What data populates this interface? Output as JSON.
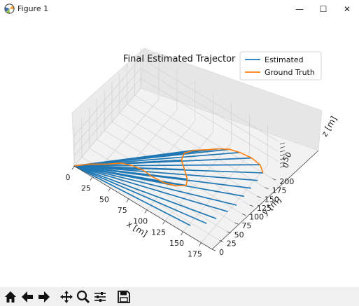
{
  "window": {
    "title": "Figure 1",
    "minimize_glyph": "—",
    "maximize_glyph": "☐",
    "close_glyph": "✕"
  },
  "toolbar": {
    "buttons": [
      {
        "name": "home-icon"
      },
      {
        "name": "back-arrow-icon"
      },
      {
        "name": "forward-arrow-icon"
      },
      {
        "name": "pan-icon"
      },
      {
        "name": "zoom-icon"
      },
      {
        "name": "configure-subplots-icon"
      },
      {
        "name": "save-icon"
      }
    ]
  },
  "chart_data": {
    "type": "line",
    "projection": "3d",
    "title": "Final Estimated Trajector",
    "xlabel": "x [m]",
    "ylabel": "y [m]",
    "zlabel": "z [m]",
    "x_ticks": [
      "0",
      "25",
      "50",
      "75",
      "100",
      "125",
      "150",
      "175"
    ],
    "y_ticks": [
      "0",
      "25",
      "50",
      "75",
      "100",
      "125",
      "150",
      "175",
      "200"
    ],
    "z_ticks": [
      "0",
      "50"
    ],
    "xlim": [
      0,
      190
    ],
    "ylim": [
      0,
      220
    ],
    "grid": true,
    "legend_position": "top-right",
    "series": [
      {
        "name": "Estimated",
        "color": "#1f77b4",
        "origin": [
          0,
          0
        ],
        "endpoints": [
          [
            152,
            20
          ],
          [
            165,
            42
          ],
          [
            170,
            62
          ],
          [
            175,
            88
          ],
          [
            178,
            110
          ],
          [
            178,
            135
          ],
          [
            178,
            158
          ],
          [
            178,
            180
          ],
          [
            177,
            200
          ],
          [
            168,
            212
          ],
          [
            155,
            215
          ],
          [
            140,
            212
          ],
          [
            128,
            206
          ],
          [
            118,
            195
          ],
          [
            108,
            180
          ],
          [
            97,
            165
          ],
          [
            90,
            148
          ],
          [
            93,
            132
          ],
          [
            103,
            118
          ],
          [
            113,
            103
          ],
          [
            117,
            90
          ],
          [
            108,
            78
          ],
          [
            95,
            70
          ],
          [
            78,
            68
          ],
          [
            65,
            70
          ],
          [
            52,
            66
          ],
          [
            40,
            58
          ],
          [
            28,
            40
          ],
          [
            12,
            20
          ]
        ]
      },
      {
        "name": "Ground Truth",
        "color": "#ff7f0e",
        "points": [
          [
            0,
            0
          ],
          [
            12,
            20
          ],
          [
            28,
            40
          ],
          [
            40,
            58
          ],
          [
            52,
            66
          ],
          [
            65,
            70
          ],
          [
            78,
            68
          ],
          [
            95,
            70
          ],
          [
            108,
            78
          ],
          [
            117,
            90
          ],
          [
            113,
            103
          ],
          [
            103,
            118
          ],
          [
            93,
            132
          ],
          [
            90,
            148
          ],
          [
            97,
            165
          ],
          [
            108,
            180
          ],
          [
            118,
            195
          ],
          [
            128,
            206
          ],
          [
            140,
            212
          ],
          [
            155,
            215
          ],
          [
            168,
            212
          ],
          [
            177,
            200
          ]
        ]
      }
    ]
  }
}
